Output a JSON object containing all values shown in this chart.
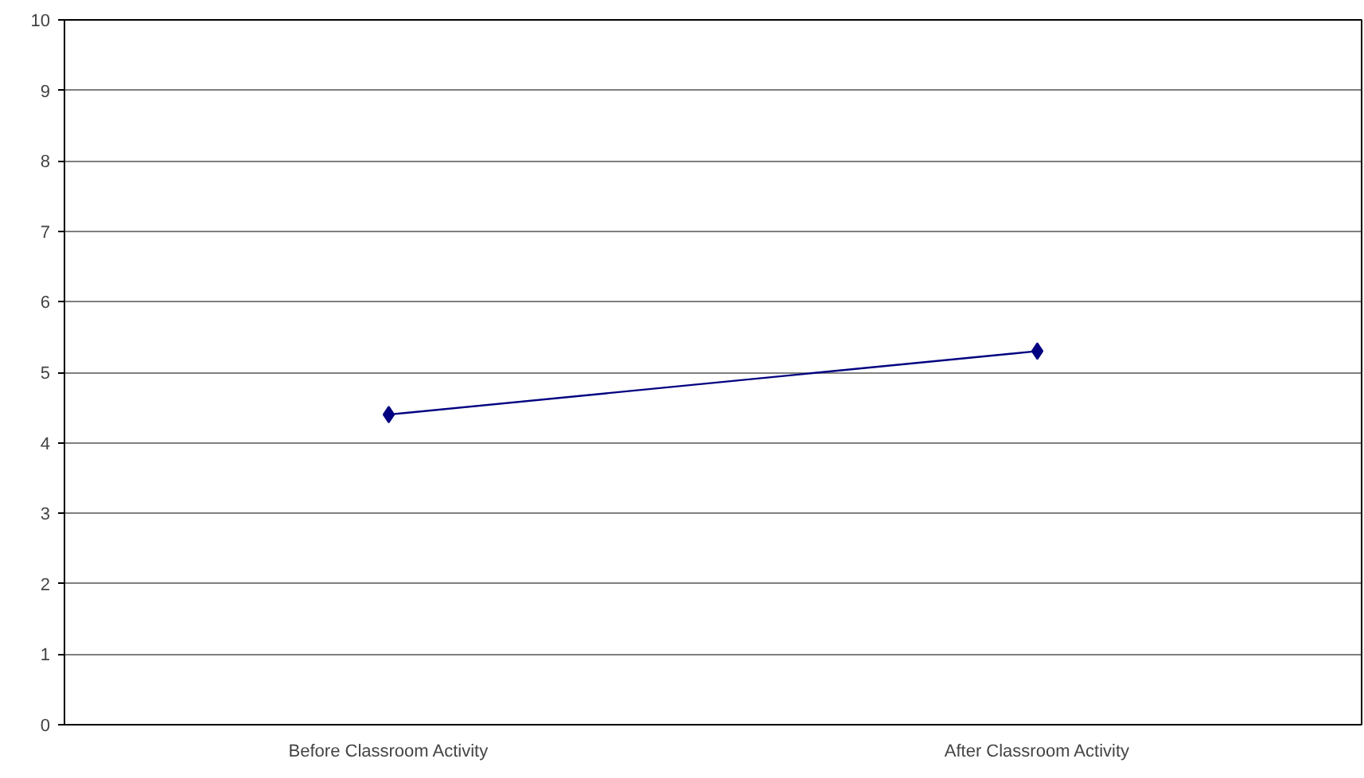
{
  "chart_data": {
    "type": "line",
    "categories": [
      "Before Classroom Activity",
      "After Classroom Activity"
    ],
    "series": [
      {
        "color": "#000080",
        "values": [
          4.4,
          5.3
        ]
      }
    ],
    "ylim": [
      0,
      10
    ],
    "yticks": [
      0,
      1,
      2,
      3,
      4,
      5,
      6,
      7,
      8,
      9,
      10
    ],
    "grid": "y",
    "marker": "diamond",
    "line_style": "solid"
  }
}
